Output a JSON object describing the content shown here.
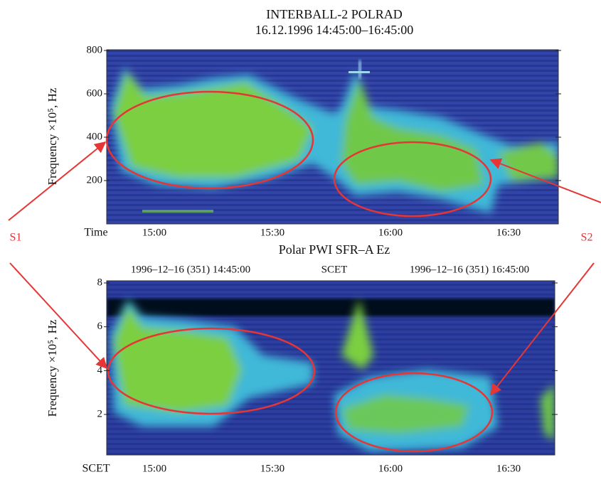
{
  "panels": [
    {
      "title_lines": [
        "INTERBALL-2 POLRAD",
        "16.12.1996 14:45:00–16:45:00"
      ],
      "y_label": "Frequency ×10⁵, Hz",
      "yticks": [
        800,
        600,
        400,
        200
      ],
      "x_label": "Time",
      "xticks": [
        "15:00",
        "15:30",
        "16:00",
        "16:30"
      ]
    },
    {
      "title_lines": [
        "Polar PWI SFR–A Ez"
      ],
      "header": [
        "1996–12–16 (351) 14:45:00",
        "SCET",
        "1996–12–16 (351) 16:45:00"
      ],
      "y_label": "Frequency ×10⁵, Hz",
      "yticks": [
        8,
        6,
        4,
        2
      ],
      "x_label": "SCET",
      "xticks": [
        "15:00",
        "15:30",
        "16:00",
        "16:30"
      ]
    }
  ],
  "annotations": [
    "S1",
    "S2"
  ]
}
